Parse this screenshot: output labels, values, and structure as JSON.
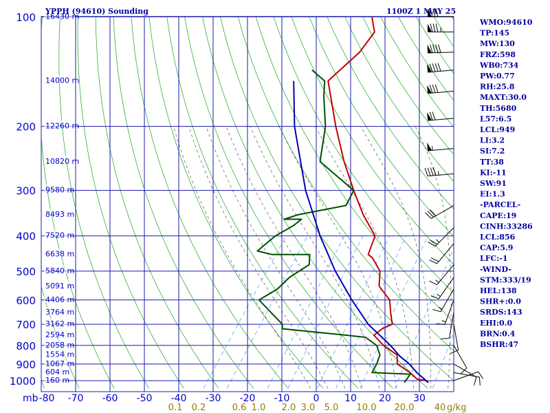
{
  "chart_data": {
    "type": "line",
    "title": "YPPH (94610) Sounding",
    "time_label": "1100Z  1 MAY 25",
    "y_axis_unit": "mb",
    "x_axis_unit": "g/kg",
    "pressure_levels": [
      100,
      200,
      300,
      400,
      500,
      600,
      700,
      800,
      900,
      1000
    ],
    "pressure_labels": [
      "100",
      "200",
      "300",
      "400",
      "500",
      "600",
      "700",
      "800",
      "900",
      "1000"
    ],
    "temp_ticks": [
      -80,
      -70,
      -60,
      -50,
      -40,
      -30,
      -20,
      -10,
      0,
      10,
      20,
      30
    ],
    "temp_labels": [
      "-80",
      "-70",
      "-60",
      "-50",
      "-40",
      "-30",
      "-20",
      "-10",
      "0",
      "10",
      "20",
      "30"
    ],
    "height_labels": [
      {
        "p": 100,
        "text": "16430 m"
      },
      {
        "p": 150,
        "text": "14000 m"
      },
      {
        "p": 200,
        "text": "12260 m"
      },
      {
        "p": 250,
        "text": "10820 m"
      },
      {
        "p": 300,
        "text": "9580 m"
      },
      {
        "p": 350,
        "text": "8493 m"
      },
      {
        "p": 400,
        "text": "7520 m"
      },
      {
        "p": 450,
        "text": "6638 m"
      },
      {
        "p": 500,
        "text": "5840 m"
      },
      {
        "p": 550,
        "text": "5091 m"
      },
      {
        "p": 600,
        "text": "4406 m"
      },
      {
        "p": 650,
        "text": "3764 m"
      },
      {
        "p": 700,
        "text": "3162 m"
      },
      {
        "p": 750,
        "text": "2594 m"
      },
      {
        "p": 800,
        "text": "2058 m"
      },
      {
        "p": 850,
        "text": "1554 m"
      },
      {
        "p": 900,
        "text": "1067 m"
      },
      {
        "p": 950,
        "text": "604 m"
      },
      {
        "p": 1000,
        "text": "160 m"
      }
    ],
    "mixing_ratio_labels": [
      "0.1",
      "0.2",
      "0.6",
      "1.0",
      "2.0",
      "3.0",
      "5.0",
      "10.0",
      "20.0",
      "40"
    ],
    "series": [
      {
        "name": "Temperature",
        "color": "#c00000",
        "points": [
          [
            1012,
            23
          ],
          [
            1000,
            22
          ],
          [
            990,
            19
          ],
          [
            950,
            15.5
          ],
          [
            900,
            10
          ],
          [
            850,
            8
          ],
          [
            800,
            2
          ],
          [
            750,
            -3
          ],
          [
            720,
            -2
          ],
          [
            700,
            0
          ],
          [
            650,
            -3
          ],
          [
            600,
            -6
          ],
          [
            550,
            -12
          ],
          [
            500,
            -15
          ],
          [
            460,
            -20
          ],
          [
            450,
            -22
          ],
          [
            400,
            -24
          ],
          [
            350,
            -32
          ],
          [
            300,
            -40
          ],
          [
            250,
            -49
          ],
          [
            200,
            -59
          ],
          [
            150,
            -71
          ],
          [
            125,
            -68
          ],
          [
            110,
            -68
          ],
          [
            105,
            -70
          ],
          [
            100,
            -72
          ]
        ]
      },
      {
        "name": "Dew point",
        "color": "#005000",
        "points": [
          [
            1012,
            16
          ],
          [
            1000,
            16
          ],
          [
            960,
            16
          ],
          [
            950,
            4.5
          ],
          [
            900,
            4
          ],
          [
            850,
            3
          ],
          [
            800,
            0
          ],
          [
            760,
            -5
          ],
          [
            750,
            -11
          ],
          [
            720,
            -31
          ],
          [
            700,
            -32
          ],
          [
            600,
            -44
          ],
          [
            560,
            -41
          ],
          [
            520,
            -40
          ],
          [
            480,
            -37
          ],
          [
            450,
            -39
          ],
          [
            450,
            -50
          ],
          [
            440,
            -55
          ],
          [
            400,
            -53
          ],
          [
            375,
            -50
          ],
          [
            360,
            -49
          ],
          [
            360,
            -54
          ],
          [
            350,
            -51
          ],
          [
            330,
            -39
          ],
          [
            300,
            -40
          ],
          [
            250,
            -56
          ],
          [
            200,
            -62
          ],
          [
            165,
            -69
          ],
          [
            150,
            -72
          ],
          [
            140,
            -78
          ]
        ]
      },
      {
        "name": "Parcel",
        "color": "#0000b0",
        "points": [
          [
            1012,
            23
          ],
          [
            950,
            17.5
          ],
          [
            900,
            13.5
          ],
          [
            856,
            9
          ],
          [
            800,
            4
          ],
          [
            700,
            -7
          ],
          [
            600,
            -17
          ],
          [
            500,
            -28
          ],
          [
            400,
            -40
          ],
          [
            300,
            -54
          ],
          [
            200,
            -71
          ],
          [
            150,
            -81
          ]
        ]
      }
    ],
    "indices": [
      "WMO:94610",
      "TP:145",
      "MW:130",
      "FRZ:598",
      "WB0:734",
      "PW:0.77",
      "RH:25.8",
      "MAXT:30.0",
      "TH:5680",
      "L57:6.5",
      "LCL:949",
      "LI:3.2",
      "SI:7.2",
      "TT:38",
      "KI:-11",
      "SW:91",
      "EI:1.3",
      "-PARCEL-",
      "CAPE:19",
      "CINH:33286",
      "LCL:856",
      "CAP:5.9",
      "LFC:-1",
      "-WIND-",
      "STM:333/19",
      "HEL:138",
      "SHR+:0.0",
      "SRDS:143",
      "EHI:0.0",
      "BRN:0.4",
      "BSHR:47"
    ],
    "winds": [
      {
        "p": 100,
        "dir": 270,
        "kt": 80
      },
      {
        "p": 110,
        "dir": 270,
        "kt": 85
      },
      {
        "p": 125,
        "dir": 268,
        "kt": 90
      },
      {
        "p": 140,
        "dir": 265,
        "kt": 90
      },
      {
        "p": 160,
        "dir": 265,
        "kt": 80
      },
      {
        "p": 190,
        "dir": 265,
        "kt": 70
      },
      {
        "p": 230,
        "dir": 265,
        "kt": 55
      },
      {
        "p": 270,
        "dir": 265,
        "kt": 45
      },
      {
        "p": 330,
        "dir": 240,
        "kt": 30
      },
      {
        "p": 380,
        "dir": 225,
        "kt": 25
      },
      {
        "p": 420,
        "dir": 220,
        "kt": 20
      },
      {
        "p": 480,
        "dir": 220,
        "kt": 15
      },
      {
        "p": 520,
        "dir": 215,
        "kt": 15
      },
      {
        "p": 560,
        "dir": 210,
        "kt": 15
      },
      {
        "p": 600,
        "dir": 200,
        "kt": 15
      },
      {
        "p": 650,
        "dir": 190,
        "kt": 10
      },
      {
        "p": 700,
        "dir": 170,
        "kt": 10
      },
      {
        "p": 800,
        "dir": 150,
        "kt": 10
      },
      {
        "p": 900,
        "dir": 120,
        "kt": 10
      },
      {
        "p": 950,
        "dir": 100,
        "kt": 10
      },
      {
        "p": 1000,
        "dir": 70,
        "kt": 10
      }
    ]
  }
}
